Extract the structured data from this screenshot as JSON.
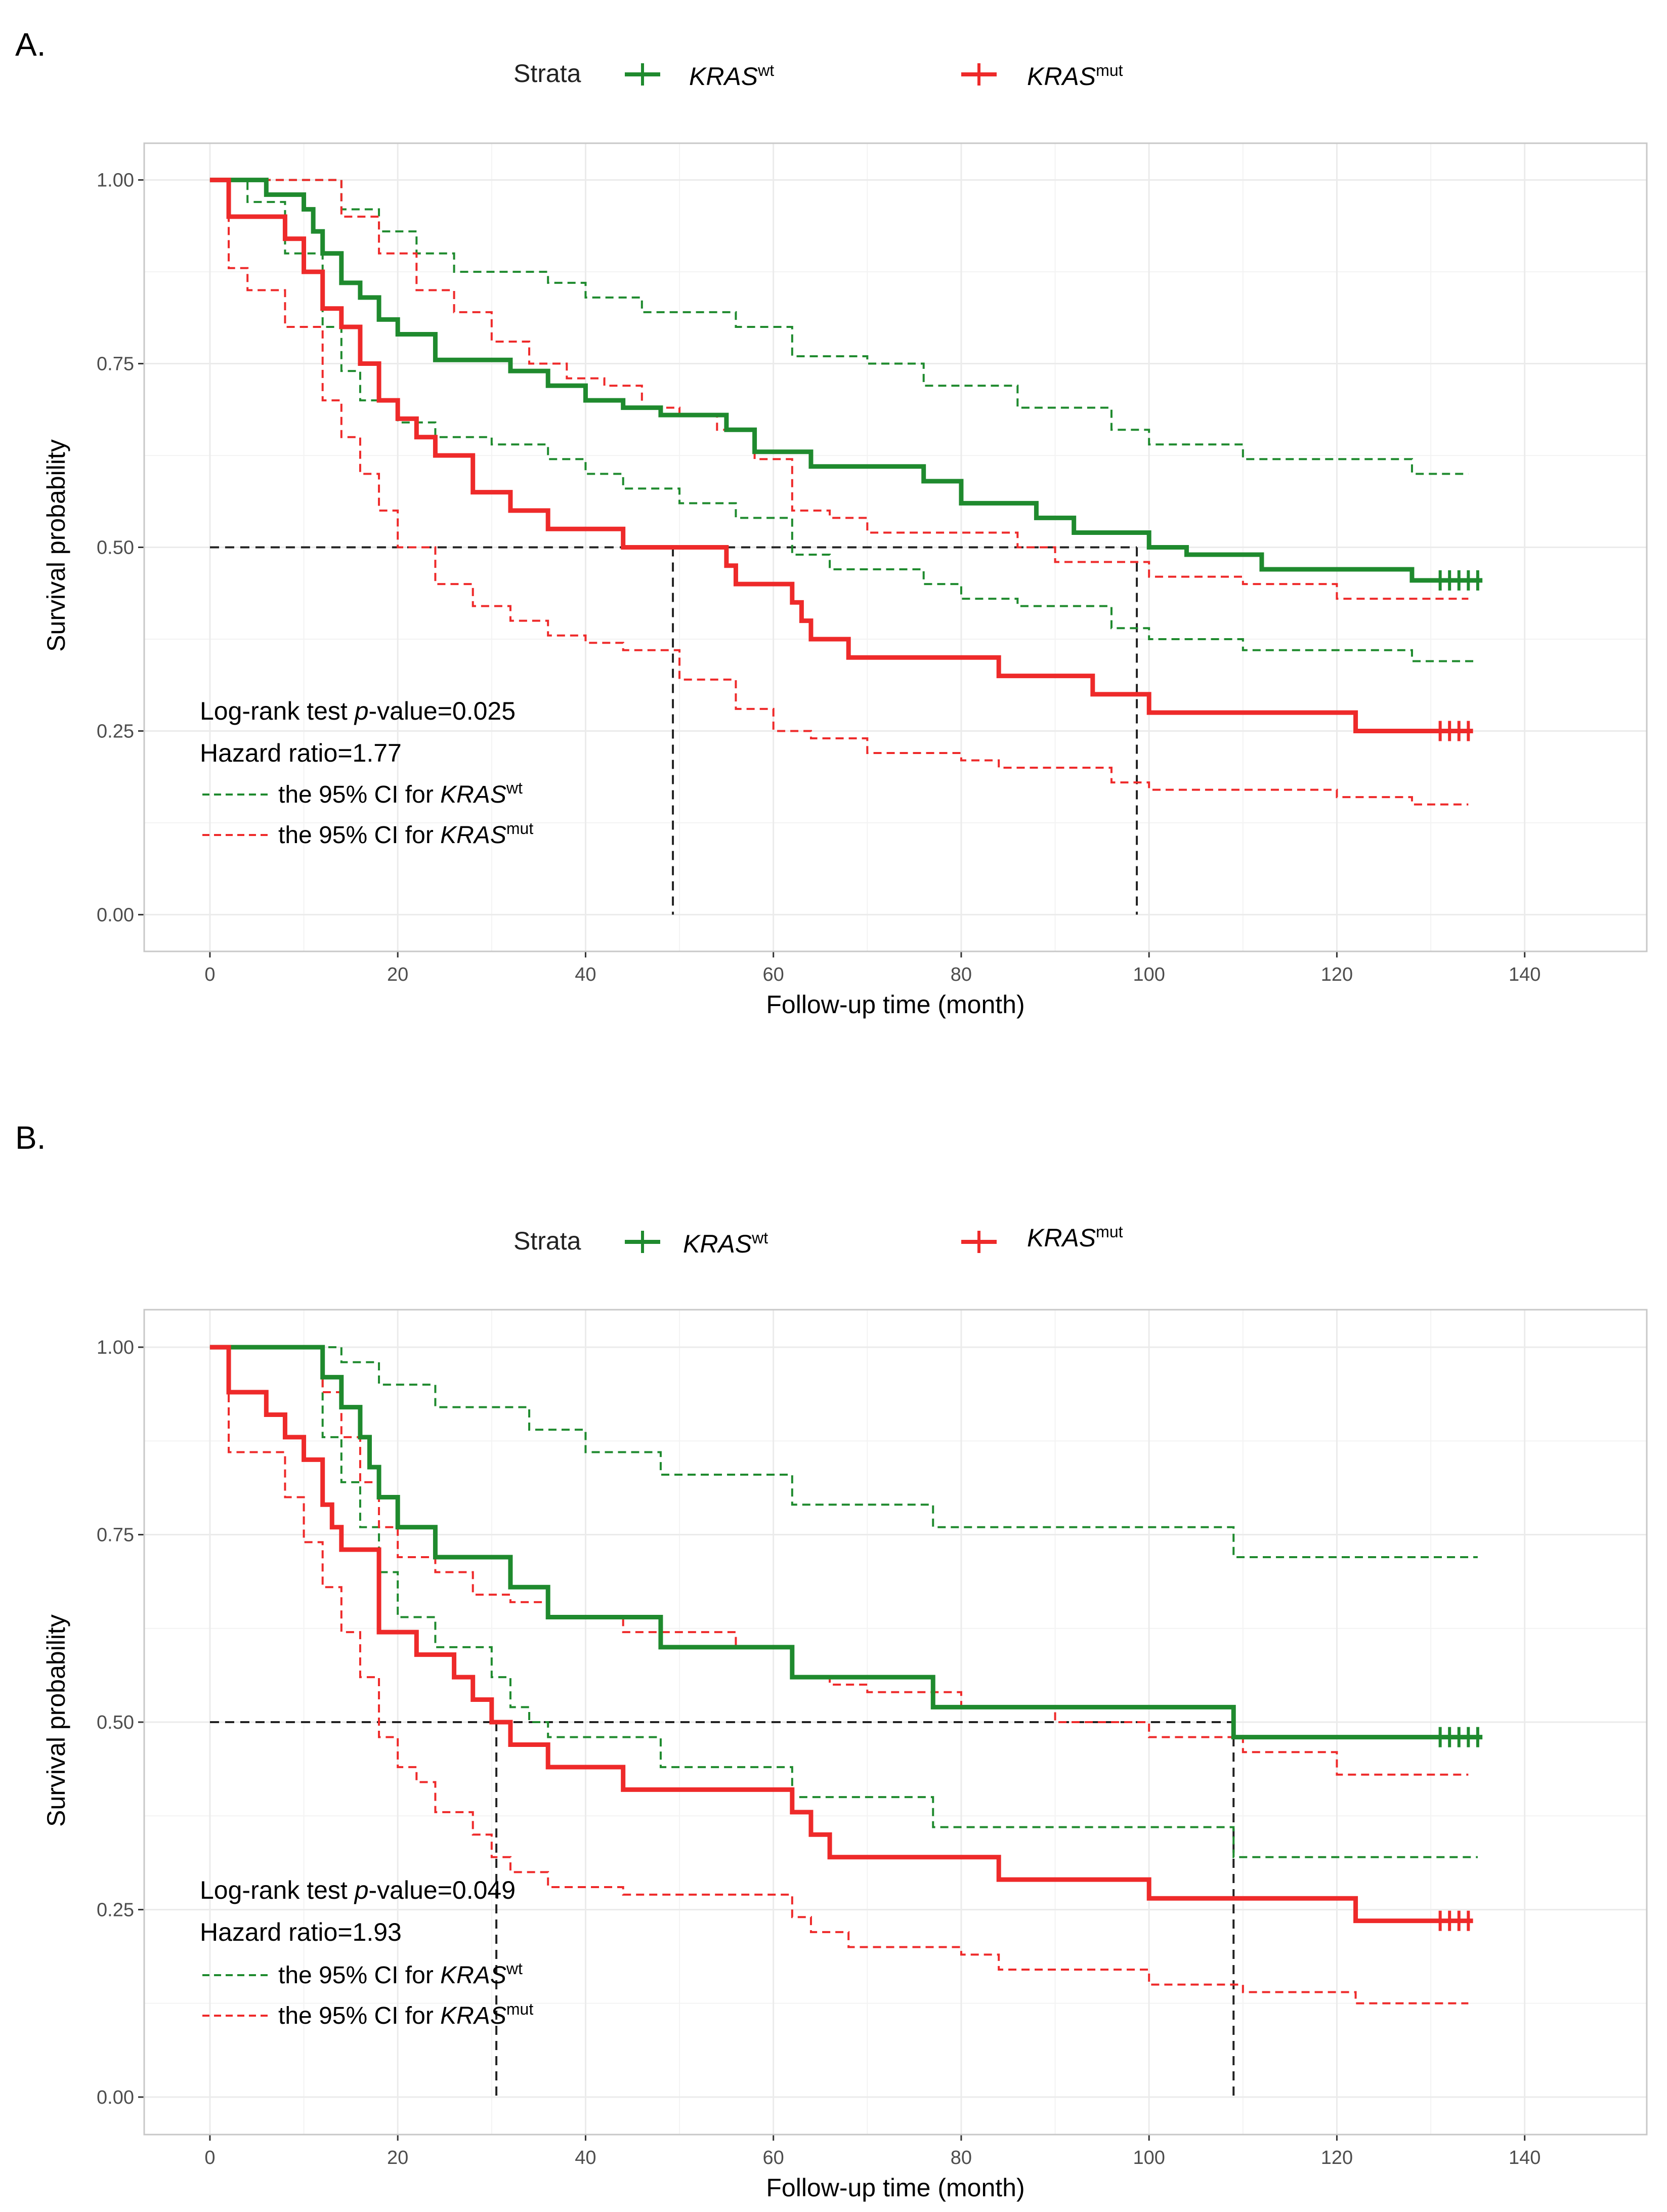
{
  "colors": {
    "wt": "#1f8a2e",
    "mut": "#ee2a2a",
    "ref": "#222222",
    "grid": "#ebebeb",
    "border": "#c8c8c8"
  },
  "chart_data": [
    {
      "type": "line",
      "panel_label": "A.",
      "title": "",
      "xlabel": "Follow-up time (month)",
      "ylabel": "Survival probability",
      "xlim": [
        -7,
        153
      ],
      "ylim": [
        -0.05,
        1.05
      ],
      "xticks": [
        0,
        20,
        40,
        60,
        80,
        100,
        120,
        140
      ],
      "xtick_labels": [
        "0",
        "20",
        "40",
        "60",
        "80",
        "100",
        "120",
        "140"
      ],
      "yticks": [
        0,
        0.25,
        0.5,
        0.75,
        1.0
      ],
      "ytick_labels": [
        "0.00",
        "0.25",
        "0.50",
        "0.75",
        "1.00"
      ],
      "legend": {
        "title": "Strata",
        "position": "top",
        "entries": [
          {
            "key": "wt",
            "base": "KRAS",
            "sup": "wt"
          },
          {
            "key": "mut",
            "base": "KRAS",
            "sup": "mut"
          }
        ]
      },
      "annotation": {
        "pvalue_prefix": "Log-rank test ",
        "pvalue_italic": "p",
        "pvalue_suffix": "-value=0.025",
        "hazard": "Hazard ratio=1.77",
        "ci_prefix": "the 95% CI for ",
        "ci_base": "KRAS",
        "ci_wt_sup": "wt",
        "ci_mut_sup": "mut"
      },
      "median_line": {
        "y": 0.5,
        "x_wt": 98.7,
        "x_mut": 49.3
      },
      "series": [
        {
          "name": "KRASwt",
          "key": "wt",
          "x": [
            0,
            4,
            6,
            8,
            10,
            11,
            12,
            14,
            16,
            18,
            20,
            24,
            28,
            32,
            36,
            40,
            44,
            48,
            50,
            55,
            58,
            60,
            64,
            68,
            72,
            76,
            80,
            84,
            88,
            92,
            96,
            100,
            104,
            108,
            112,
            120,
            128,
            135.5
          ],
          "y": [
            1,
            1,
            0.98,
            0.98,
            0.96,
            0.93,
            0.9,
            0.86,
            0.84,
            0.81,
            0.79,
            0.755,
            0.755,
            0.74,
            0.72,
            0.7,
            0.69,
            0.68,
            0.68,
            0.66,
            0.63,
            0.63,
            0.61,
            0.61,
            0.61,
            0.59,
            0.56,
            0.56,
            0.54,
            0.52,
            0.52,
            0.5,
            0.49,
            0.49,
            0.47,
            0.47,
            0.455,
            0.455
          ],
          "censor": [
            131,
            132,
            133,
            134,
            135
          ]
        },
        {
          "name": "wt_upper",
          "key": "wt",
          "dashed": true,
          "x": [
            0,
            10,
            14,
            18,
            22,
            26,
            30,
            36,
            40,
            46,
            50,
            56,
            62,
            66,
            70,
            76,
            80,
            86,
            90,
            96,
            100,
            110,
            120,
            128,
            134
          ],
          "y": [
            1,
            1,
            0.96,
            0.93,
            0.9,
            0.875,
            0.875,
            0.86,
            0.84,
            0.82,
            0.82,
            0.8,
            0.76,
            0.76,
            0.75,
            0.72,
            0.72,
            0.69,
            0.69,
            0.66,
            0.64,
            0.62,
            0.62,
            0.6,
            0.6
          ]
        },
        {
          "name": "wt_lower",
          "key": "wt",
          "dashed": true,
          "x": [
            0,
            4,
            8,
            12,
            14,
            16,
            20,
            24,
            30,
            36,
            40,
            44,
            50,
            56,
            62,
            66,
            72,
            76,
            80,
            86,
            90,
            96,
            100,
            110,
            120,
            128,
            135
          ],
          "y": [
            1,
            0.97,
            0.9,
            0.8,
            0.74,
            0.7,
            0.67,
            0.65,
            0.64,
            0.62,
            0.6,
            0.58,
            0.56,
            0.54,
            0.49,
            0.47,
            0.47,
            0.45,
            0.43,
            0.42,
            0.42,
            0.39,
            0.375,
            0.36,
            0.36,
            0.345,
            0.345
          ]
        },
        {
          "name": "KRASmut",
          "key": "mut",
          "x": [
            0,
            2,
            4,
            6,
            8,
            10,
            12,
            14,
            16,
            18,
            20,
            22,
            24,
            28,
            32,
            36,
            40,
            44,
            50,
            55,
            56,
            60,
            62,
            63,
            64,
            66,
            68,
            72,
            80,
            84,
            90,
            94,
            98,
            100,
            104,
            110,
            120,
            122,
            134.5
          ],
          "y": [
            1,
            0.95,
            0.95,
            0.95,
            0.92,
            0.875,
            0.825,
            0.8,
            0.75,
            0.7,
            0.675,
            0.65,
            0.625,
            0.575,
            0.55,
            0.525,
            0.525,
            0.5,
            0.5,
            0.475,
            0.45,
            0.45,
            0.425,
            0.4,
            0.375,
            0.375,
            0.35,
            0.35,
            0.35,
            0.325,
            0.325,
            0.3,
            0.3,
            0.275,
            0.275,
            0.275,
            0.275,
            0.25,
            0.25
          ],
          "censor": [
            131,
            132,
            133,
            134
          ]
        },
        {
          "name": "mut_upper",
          "key": "mut",
          "dashed": true,
          "x": [
            0,
            6,
            10,
            14,
            18,
            22,
            26,
            30,
            34,
            38,
            42,
            46,
            50,
            54,
            58,
            62,
            66,
            70,
            74,
            80,
            86,
            90,
            96,
            100,
            110,
            120,
            128,
            134
          ],
          "y": [
            1,
            1,
            1,
            0.95,
            0.9,
            0.85,
            0.82,
            0.78,
            0.75,
            0.73,
            0.72,
            0.69,
            0.68,
            0.66,
            0.62,
            0.55,
            0.54,
            0.52,
            0.52,
            0.52,
            0.5,
            0.48,
            0.48,
            0.46,
            0.45,
            0.43,
            0.43,
            0.43
          ]
        },
        {
          "name": "mut_lower",
          "key": "mut",
          "dashed": true,
          "x": [
            0,
            2,
            4,
            8,
            12,
            14,
            16,
            18,
            20,
            24,
            28,
            32,
            36,
            40,
            44,
            50,
            56,
            60,
            64,
            70,
            76,
            80,
            84,
            90,
            96,
            100,
            110,
            120,
            128,
            134
          ],
          "y": [
            1,
            0.88,
            0.85,
            0.8,
            0.7,
            0.65,
            0.6,
            0.55,
            0.5,
            0.45,
            0.42,
            0.4,
            0.38,
            0.37,
            0.36,
            0.32,
            0.28,
            0.25,
            0.24,
            0.22,
            0.22,
            0.21,
            0.2,
            0.2,
            0.18,
            0.17,
            0.17,
            0.16,
            0.15,
            0.15
          ]
        }
      ]
    },
    {
      "type": "line",
      "panel_label": "B.",
      "title": "",
      "xlabel": "Follow-up time (month)",
      "ylabel": "Survival probability",
      "xlim": [
        -7,
        153
      ],
      "ylim": [
        -0.05,
        1.05
      ],
      "xticks": [
        0,
        20,
        40,
        60,
        80,
        100,
        120,
        140
      ],
      "xtick_labels": [
        "0",
        "20",
        "40",
        "60",
        "80",
        "100",
        "120",
        "140"
      ],
      "yticks": [
        0,
        0.25,
        0.5,
        0.75,
        1.0
      ],
      "ytick_labels": [
        "0.00",
        "0.25",
        "0.50",
        "0.75",
        "1.00"
      ],
      "legend": {
        "title": "Strata",
        "position": "top",
        "entries": [
          {
            "key": "wt",
            "base": "KRAS",
            "sup": "wt"
          },
          {
            "key": "mut",
            "base": "KRAS",
            "sup": "mut"
          }
        ]
      },
      "annotation": {
        "pvalue_prefix": "Log-rank test ",
        "pvalue_italic": "p",
        "pvalue_suffix": "-value=0.049",
        "hazard": "Hazard ratio=1.93",
        "ci_prefix": "the 95% CI for ",
        "ci_base": "KRAS",
        "ci_wt_sup": "wt",
        "ci_mut_sup": "mut"
      },
      "median_line": {
        "y": 0.5,
        "x_wt": 109,
        "x_mut": 30.5
      },
      "series": [
        {
          "name": "KRASwt",
          "key": "wt",
          "x": [
            0,
            10,
            12,
            14,
            16,
            17,
            18,
            20,
            24,
            28,
            30,
            32,
            34,
            36,
            40,
            44,
            48,
            56,
            62,
            64,
            70,
            77,
            80,
            90,
            100,
            109,
            115,
            120,
            135.5
          ],
          "y": [
            1,
            1,
            0.96,
            0.92,
            0.88,
            0.84,
            0.8,
            0.76,
            0.72,
            0.72,
            0.72,
            0.68,
            0.68,
            0.64,
            0.64,
            0.64,
            0.6,
            0.6,
            0.56,
            0.56,
            0.56,
            0.52,
            0.52,
            0.52,
            0.52,
            0.48,
            0.48,
            0.48,
            0.48
          ],
          "censor": [
            131,
            132,
            133,
            134,
            135
          ]
        },
        {
          "name": "wt_upper",
          "key": "wt",
          "dashed": true,
          "x": [
            0,
            10,
            14,
            18,
            20,
            24,
            30,
            34,
            40,
            48,
            56,
            62,
            70,
            77,
            90,
            100,
            109,
            120,
            135
          ],
          "y": [
            1,
            1,
            0.98,
            0.95,
            0.95,
            0.92,
            0.92,
            0.89,
            0.86,
            0.83,
            0.83,
            0.79,
            0.79,
            0.76,
            0.76,
            0.76,
            0.72,
            0.72,
            0.72
          ]
        },
        {
          "name": "wt_lower",
          "key": "wt",
          "dashed": true,
          "x": [
            0,
            10,
            12,
            14,
            16,
            18,
            20,
            24,
            28,
            30,
            32,
            34,
            36,
            40,
            44,
            48,
            56,
            62,
            64,
            70,
            77,
            80,
            90,
            100,
            109,
            115,
            120,
            135
          ],
          "y": [
            1,
            1,
            0.88,
            0.82,
            0.76,
            0.7,
            0.64,
            0.6,
            0.6,
            0.56,
            0.52,
            0.5,
            0.48,
            0.48,
            0.48,
            0.44,
            0.44,
            0.4,
            0.4,
            0.4,
            0.36,
            0.36,
            0.36,
            0.36,
            0.32,
            0.32,
            0.32,
            0.32
          ]
        },
        {
          "name": "KRASmut",
          "key": "mut",
          "x": [
            0,
            2,
            4,
            6,
            8,
            10,
            12,
            13,
            14,
            16,
            18,
            20,
            22,
            26,
            28,
            30,
            32,
            36,
            40,
            44,
            50,
            56,
            62,
            64,
            66,
            68,
            72,
            80,
            84,
            90,
            100,
            110,
            120,
            122,
            134.5
          ],
          "y": [
            1,
            0.94,
            0.94,
            0.91,
            0.88,
            0.85,
            0.79,
            0.76,
            0.73,
            0.73,
            0.62,
            0.62,
            0.59,
            0.56,
            0.53,
            0.5,
            0.47,
            0.44,
            0.44,
            0.41,
            0.41,
            0.41,
            0.38,
            0.35,
            0.32,
            0.32,
            0.32,
            0.32,
            0.29,
            0.29,
            0.265,
            0.265,
            0.265,
            0.235,
            0.235
          ],
          "censor": [
            131,
            132,
            133,
            134
          ]
        },
        {
          "name": "mut_upper",
          "key": "mut",
          "dashed": true,
          "x": [
            0,
            6,
            10,
            12,
            14,
            16,
            18,
            20,
            24,
            28,
            32,
            36,
            40,
            44,
            50,
            56,
            62,
            66,
            70,
            80,
            90,
            100,
            110,
            120,
            122,
            134
          ],
          "y": [
            1,
            1,
            1,
            0.94,
            0.88,
            0.82,
            0.76,
            0.72,
            0.7,
            0.67,
            0.66,
            0.64,
            0.64,
            0.62,
            0.62,
            0.6,
            0.56,
            0.55,
            0.54,
            0.52,
            0.5,
            0.48,
            0.46,
            0.43,
            0.43,
            0.43
          ]
        },
        {
          "name": "mut_lower",
          "key": "mut",
          "dashed": true,
          "x": [
            0,
            2,
            4,
            8,
            10,
            12,
            14,
            16,
            18,
            20,
            22,
            24,
            28,
            30,
            32,
            36,
            40,
            44,
            50,
            56,
            62,
            64,
            68,
            72,
            80,
            84,
            90,
            100,
            110,
            120,
            122,
            134
          ],
          "y": [
            1,
            0.86,
            0.86,
            0.8,
            0.74,
            0.68,
            0.62,
            0.56,
            0.48,
            0.44,
            0.42,
            0.38,
            0.35,
            0.32,
            0.3,
            0.28,
            0.28,
            0.27,
            0.27,
            0.27,
            0.24,
            0.22,
            0.2,
            0.2,
            0.19,
            0.17,
            0.17,
            0.15,
            0.14,
            0.14,
            0.125,
            0.125
          ]
        }
      ]
    }
  ]
}
